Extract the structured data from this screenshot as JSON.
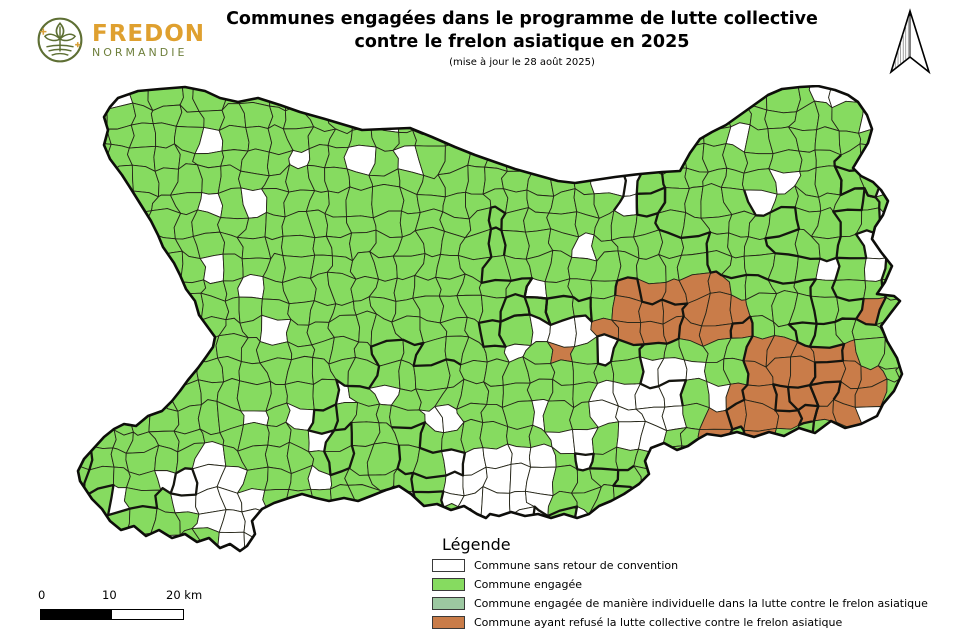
{
  "header": {
    "logo": {
      "brand": "FREDON",
      "region": "NORMANDIE"
    },
    "title_line1": "Communes engagées dans le programme de lutte collective",
    "title_line2": "contre le frelon asiatique en 2025",
    "subtitle": "(mise à jour le 28 août 2025)"
  },
  "map": {
    "colors": {
      "engaged": "#86db60",
      "no_return": "#ffffff",
      "individual": "#9cc8a1",
      "refused": "#c97c49",
      "commune_border": "#262619",
      "district_border": "#15150f",
      "department_border": "#0d0d0a"
    }
  },
  "legend": {
    "title": "Légende",
    "items": [
      {
        "label": "Commune sans retour de convention",
        "color": "#ffffff"
      },
      {
        "label": "Commune engagée",
        "color": "#86db60"
      },
      {
        "label": "Commune engagée de manière individuelle dans la lutte contre le frelon asiatique",
        "color": "#9cc8a1"
      },
      {
        "label": "Commune ayant refusé la lutte collective contre le frelon asiatique",
        "color": "#c97c49"
      }
    ]
  },
  "scale_bar": {
    "ticks": [
      "0",
      "10",
      "20 km"
    ]
  }
}
